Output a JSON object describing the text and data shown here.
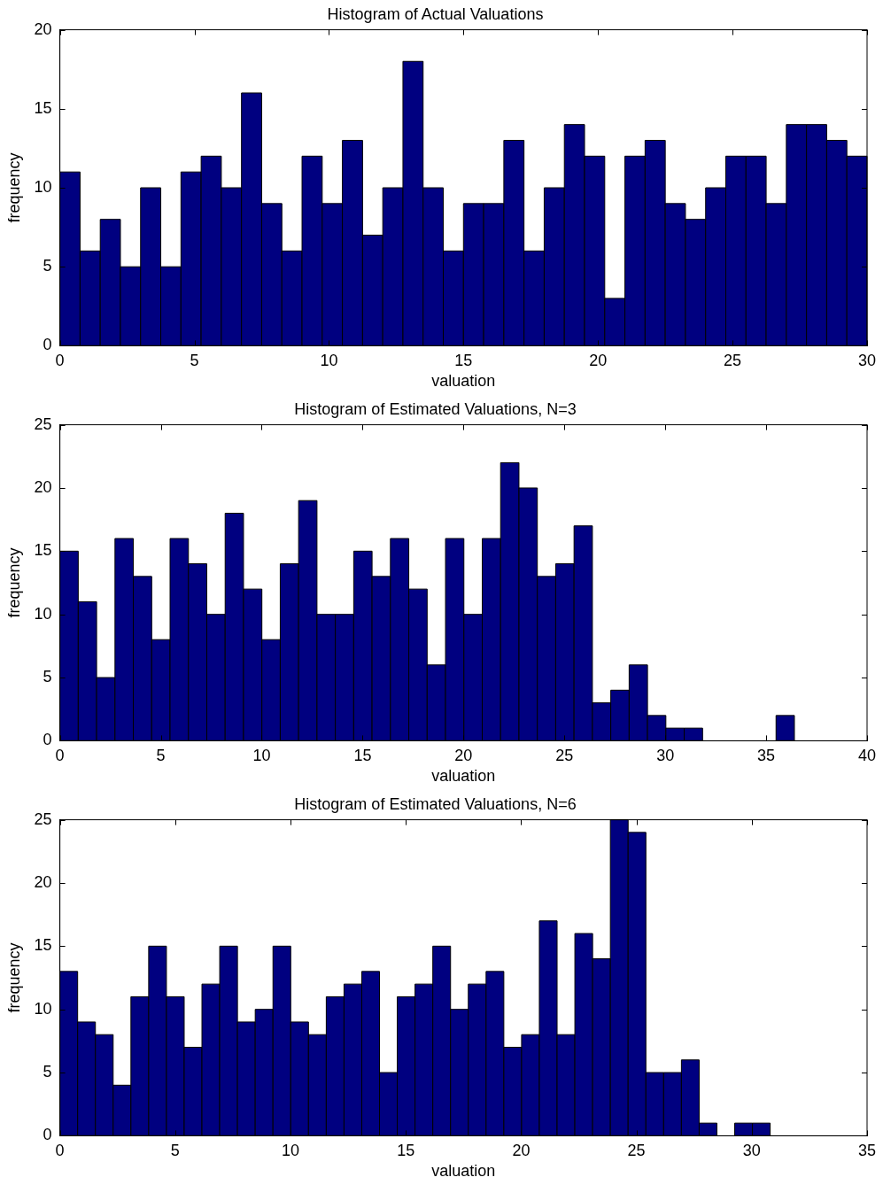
{
  "chart_data": [
    {
      "type": "histogram",
      "title": "Histogram of Actual Valuations",
      "xlabel": "valuation",
      "ylabel": "frequency",
      "color": "#000080",
      "bins": [
        0,
        0.75,
        1.5,
        2.25,
        3,
        3.75,
        4.5,
        5.25,
        6,
        6.75,
        7.5,
        8.25,
        9,
        9.75,
        10.5,
        11.25,
        12,
        12.75,
        13.5,
        14.25,
        15,
        15.75,
        16.5,
        17.25,
        18,
        18.75,
        19.5,
        20.25,
        21,
        21.75,
        22.5,
        23.25,
        24,
        24.75,
        25.5,
        26.25,
        27,
        27.75,
        28.5,
        29.25,
        30
      ],
      "values": [
        11,
        6,
        8,
        5,
        10,
        5,
        11,
        12,
        10,
        16,
        9,
        6,
        12,
        9,
        13,
        7,
        10,
        18,
        10,
        6,
        9,
        9,
        13,
        6,
        10,
        14,
        12,
        3,
        12,
        13,
        9,
        8,
        10,
        12,
        12,
        9,
        14,
        14,
        13,
        12
      ],
      "xlim": [
        0,
        30
      ],
      "xticks": [
        0,
        5,
        10,
        15,
        20,
        25,
        30
      ],
      "ylim": [
        0,
        20
      ],
      "yticks": [
        0,
        5,
        10,
        15,
        20
      ]
    },
    {
      "type": "histogram",
      "title": "Histogram of Estimated Valuations, N=3",
      "xlabel": "valuation",
      "ylabel": "frequency",
      "color": "#000080",
      "bins": [
        0,
        0.91,
        1.82,
        2.73,
        3.64,
        4.55,
        5.46,
        6.37,
        7.28,
        8.19,
        9.1,
        10.01,
        10.92,
        11.83,
        12.74,
        13.65,
        14.56,
        15.47,
        16.38,
        17.29,
        18.2,
        19.11,
        20.02,
        20.93,
        21.84,
        22.75,
        23.66,
        24.57,
        25.48,
        26.39,
        27.3,
        28.21,
        29.12,
        30.03,
        30.94,
        31.85,
        32.76,
        33.67,
        34.58,
        35.49,
        36.4
      ],
      "values": [
        15,
        11,
        5,
        16,
        13,
        8,
        16,
        14,
        10,
        18,
        12,
        8,
        14,
        19,
        10,
        10,
        15,
        13,
        16,
        12,
        6,
        16,
        10,
        16,
        22,
        20,
        13,
        14,
        17,
        3,
        4,
        6,
        2,
        1,
        1,
        0,
        0,
        0,
        0,
        2
      ],
      "xlim": [
        0,
        40
      ],
      "xticks": [
        0,
        5,
        10,
        15,
        20,
        25,
        30,
        35,
        40
      ],
      "ylim": [
        0,
        25
      ],
      "yticks": [
        0,
        5,
        10,
        15,
        20,
        25
      ]
    },
    {
      "type": "histogram",
      "title": "Histogram of Estimated Valuations, N=6",
      "xlabel": "valuation",
      "ylabel": "frequency",
      "color": "#000080",
      "bins": [
        0,
        0.77,
        1.54,
        2.31,
        3.08,
        3.85,
        4.62,
        5.39,
        6.16,
        6.93,
        7.7,
        8.47,
        9.24,
        10.01,
        10.78,
        11.55,
        12.32,
        13.09,
        13.86,
        14.63,
        15.4,
        16.17,
        16.94,
        17.71,
        18.48,
        19.25,
        20.02,
        20.79,
        21.56,
        22.33,
        23.1,
        23.87,
        24.64,
        25.41,
        26.18,
        26.95,
        27.72,
        28.49,
        29.26,
        30.03,
        30.8
      ],
      "values": [
        13,
        9,
        8,
        4,
        11,
        15,
        11,
        7,
        12,
        15,
        9,
        10,
        15,
        9,
        8,
        11,
        12,
        13,
        5,
        11,
        12,
        15,
        10,
        12,
        13,
        7,
        8,
        17,
        8,
        16,
        14,
        25,
        24,
        5,
        5,
        6,
        1,
        0,
        1,
        1
      ],
      "xlim": [
        0,
        35
      ],
      "xticks": [
        0,
        5,
        10,
        15,
        20,
        25,
        30,
        35
      ],
      "ylim": [
        0,
        25
      ],
      "yticks": [
        0,
        5,
        10,
        15,
        20,
        25
      ]
    }
  ]
}
